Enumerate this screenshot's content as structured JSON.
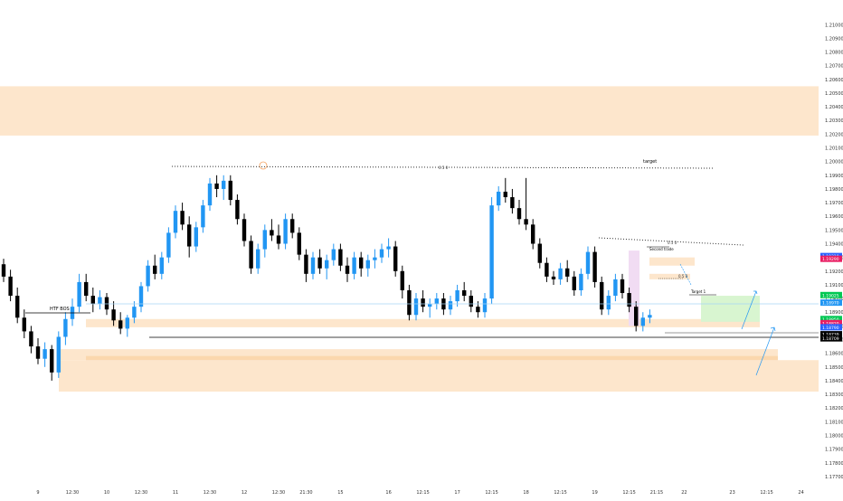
{
  "theme": {
    "background": "#ffffff",
    "up_color": "#2196f3",
    "down_color": "#000000",
    "zone_color": "#fde6cc",
    "zone_dark": "#fbd7ad",
    "target_green": "#d8f5d0",
    "purple": "#f1dcf3",
    "axis_text": "#333333"
  },
  "chart_data": {
    "type": "candlestick",
    "title": "",
    "xlabel": "",
    "ylabel": "",
    "ylim": [
      1.1764,
      1.2118
    ],
    "y_ticks": [
      "1.21000",
      "1.20900",
      "1.20800",
      "1.20700",
      "1.20600",
      "1.20500",
      "1.20400",
      "1.20300",
      "1.20200",
      "1.20100",
      "1.20000",
      "1.19900",
      "1.19800",
      "1.19700",
      "1.19600",
      "1.19500",
      "1.19400",
      "1.19300",
      "1.19200",
      "1.19100",
      "1.19000",
      "1.18900",
      "1.18800",
      "1.18700",
      "1.18600",
      "1.18500",
      "1.18400",
      "1.18300",
      "1.18200",
      "1.18100",
      "1.18000",
      "1.17900",
      "1.17800",
      "1.17700"
    ],
    "x_ticks": [
      {
        "label": "9",
        "index": 5
      },
      {
        "label": "12:30",
        "index": 10
      },
      {
        "label": "10",
        "index": 15
      },
      {
        "label": "12:30",
        "index": 20
      },
      {
        "label": "11",
        "index": 25
      },
      {
        "label": "12:30",
        "index": 30
      },
      {
        "label": "12",
        "index": 35
      },
      {
        "label": "12:30",
        "index": 40
      },
      {
        "label": "21:30",
        "index": 44
      },
      {
        "label": "15",
        "index": 49
      },
      {
        "label": "16",
        "index": 56
      },
      {
        "label": "12:15",
        "index": 61
      },
      {
        "label": "17",
        "index": 66
      },
      {
        "label": "12:15",
        "index": 71
      },
      {
        "label": "18",
        "index": 76
      },
      {
        "label": "12:15",
        "index": 81
      },
      {
        "label": "19",
        "index": 86
      },
      {
        "label": "12:15",
        "index": 91
      },
      {
        "label": "21:15",
        "index": 95
      },
      {
        "label": "22",
        "index": 99
      },
      {
        "label": "23",
        "index": 106
      },
      {
        "label": "12:15",
        "index": 111
      },
      {
        "label": "24",
        "index": 116
      }
    ],
    "candles": [
      [
        1.1925,
        1.1929,
        1.1912,
        1.1916
      ],
      [
        1.1916,
        1.1921,
        1.1898,
        1.1902
      ],
      [
        1.1902,
        1.1908,
        1.1882,
        1.1886
      ],
      [
        1.1886,
        1.1892,
        1.1871,
        1.1876
      ],
      [
        1.1876,
        1.188,
        1.186,
        1.1865
      ],
      [
        1.1865,
        1.1871,
        1.1852,
        1.1856
      ],
      [
        1.1856,
        1.1868,
        1.185,
        1.1863
      ],
      [
        1.1863,
        1.1866,
        1.184,
        1.1846
      ],
      [
        1.1846,
        1.1876,
        1.1842,
        1.1872
      ],
      [
        1.1872,
        1.189,
        1.1866,
        1.1885
      ],
      [
        1.1885,
        1.19,
        1.188,
        1.1894
      ],
      [
        1.1894,
        1.1918,
        1.189,
        1.1912
      ],
      [
        1.1912,
        1.1918,
        1.1898,
        1.1902
      ],
      [
        1.1902,
        1.1908,
        1.189,
        1.1896
      ],
      [
        1.1896,
        1.1906,
        1.1892,
        1.1901
      ],
      [
        1.1901,
        1.1904,
        1.1888,
        1.1892
      ],
      [
        1.1892,
        1.1898,
        1.188,
        1.1884
      ],
      [
        1.1884,
        1.189,
        1.1874,
        1.1878
      ],
      [
        1.1878,
        1.1888,
        1.1872,
        1.1886
      ],
      [
        1.1886,
        1.1898,
        1.1882,
        1.1894
      ],
      [
        1.1894,
        1.1912,
        1.189,
        1.1909
      ],
      [
        1.1909,
        1.1928,
        1.1905,
        1.1924
      ],
      [
        1.1924,
        1.1932,
        1.1914,
        1.1918
      ],
      [
        1.1918,
        1.1934,
        1.1914,
        1.193
      ],
      [
        1.193,
        1.1952,
        1.1926,
        1.1948
      ],
      [
        1.1948,
        1.1968,
        1.1944,
        1.1964
      ],
      [
        1.1964,
        1.197,
        1.195,
        1.1954
      ],
      [
        1.1954,
        1.196,
        1.193,
        1.1938
      ],
      [
        1.1938,
        1.1956,
        1.1934,
        1.1952
      ],
      [
        1.1952,
        1.1972,
        1.1948,
        1.1968
      ],
      [
        1.1968,
        1.1988,
        1.1964,
        1.1984
      ],
      [
        1.1984,
        1.199,
        1.1974,
        1.198
      ],
      [
        1.198,
        1.199,
        1.1972,
        1.1986
      ],
      [
        1.1986,
        1.199,
        1.1968,
        1.1972
      ],
      [
        1.1972,
        1.1976,
        1.1954,
        1.1958
      ],
      [
        1.1958,
        1.1962,
        1.1938,
        1.1942
      ],
      [
        1.1942,
        1.1946,
        1.1918,
        1.1922
      ],
      [
        1.1922,
        1.194,
        1.1918,
        1.1936
      ],
      [
        1.1936,
        1.1954,
        1.193,
        1.195
      ],
      [
        1.195,
        1.1958,
        1.1942,
        1.1946
      ],
      [
        1.1946,
        1.1954,
        1.1936,
        1.194
      ],
      [
        1.194,
        1.1962,
        1.1936,
        1.1958
      ],
      [
        1.1958,
        1.1962,
        1.1944,
        1.1948
      ],
      [
        1.1948,
        1.1952,
        1.1928,
        1.1932
      ],
      [
        1.1932,
        1.1936,
        1.1912,
        1.1918
      ],
      [
        1.1918,
        1.1934,
        1.1914,
        1.193
      ],
      [
        1.193,
        1.1936,
        1.1918,
        1.1922
      ],
      [
        1.1922,
        1.1932,
        1.1914,
        1.1928
      ],
      [
        1.1928,
        1.194,
        1.1924,
        1.1936
      ],
      [
        1.1936,
        1.194,
        1.192,
        1.1924
      ],
      [
        1.1924,
        1.193,
        1.1912,
        1.1918
      ],
      [
        1.1918,
        1.1934,
        1.1914,
        1.193
      ],
      [
        1.193,
        1.1934,
        1.1916,
        1.1922
      ],
      [
        1.1922,
        1.1932,
        1.1916,
        1.1928
      ],
      [
        1.1928,
        1.1936,
        1.1922,
        1.193
      ],
      [
        1.193,
        1.194,
        1.1926,
        1.1936
      ],
      [
        1.1936,
        1.1944,
        1.193,
        1.1938
      ],
      [
        1.1938,
        1.1942,
        1.1916,
        1.192
      ],
      [
        1.192,
        1.1924,
        1.19,
        1.1906
      ],
      [
        1.1906,
        1.191,
        1.1884,
        1.1888
      ],
      [
        1.1888,
        1.1904,
        1.1884,
        1.19
      ],
      [
        1.19,
        1.1906,
        1.189,
        1.1894
      ],
      [
        1.1894,
        1.19,
        1.1886,
        1.1896
      ],
      [
        1.1896,
        1.1904,
        1.1892,
        1.19
      ],
      [
        1.19,
        1.1904,
        1.1888,
        1.1892
      ],
      [
        1.1892,
        1.1902,
        1.1888,
        1.1898
      ],
      [
        1.1898,
        1.191,
        1.1894,
        1.1906
      ],
      [
        1.1906,
        1.1912,
        1.1898,
        1.1902
      ],
      [
        1.1902,
        1.1906,
        1.189,
        1.1894
      ],
      [
        1.1894,
        1.1898,
        1.1886,
        1.189
      ],
      [
        1.189,
        1.1904,
        1.1886,
        1.19
      ],
      [
        1.19,
        1.1974,
        1.1896,
        1.1968
      ],
      [
        1.1968,
        1.1982,
        1.1964,
        1.1978
      ],
      [
        1.1978,
        1.1988,
        1.197,
        1.1974
      ],
      [
        1.1974,
        1.198,
        1.1962,
        1.1966
      ],
      [
        1.1966,
        1.1972,
        1.1954,
        1.1958
      ],
      [
        1.1958,
        1.1988,
        1.195,
        1.1954
      ],
      [
        1.1954,
        1.1958,
        1.1936,
        1.194
      ],
      [
        1.194,
        1.1944,
        1.1922,
        1.1926
      ],
      [
        1.1926,
        1.193,
        1.1912,
        1.1916
      ],
      [
        1.1916,
        1.192,
        1.191,
        1.1914
      ],
      [
        1.1914,
        1.1926,
        1.191,
        1.1922
      ],
      [
        1.1922,
        1.1928,
        1.1912,
        1.1916
      ],
      [
        1.1916,
        1.192,
        1.1902,
        1.1906
      ],
      [
        1.1906,
        1.1922,
        1.1902,
        1.1918
      ],
      [
        1.1918,
        1.1938,
        1.1914,
        1.1934
      ],
      [
        1.1934,
        1.1938,
        1.1908,
        1.1912
      ],
      [
        1.1912,
        1.1916,
        1.1888,
        1.1892
      ],
      [
        1.1892,
        1.1906,
        1.1888,
        1.1902
      ],
      [
        1.1902,
        1.1918,
        1.1898,
        1.1914
      ],
      [
        1.1914,
        1.1918,
        1.19,
        1.1904
      ],
      [
        1.1904,
        1.1908,
        1.189,
        1.1894
      ],
      [
        1.1894,
        1.1898,
        1.1876,
        1.188
      ],
      [
        1.188,
        1.189,
        1.1876,
        1.1886
      ],
      [
        1.1886,
        1.1892,
        1.1882,
        1.1888
      ]
    ],
    "annotations": {
      "htf_bos": "HTF BOS",
      "target_top": "target",
      "dots_top": "0.5 0",
      "second_trade": "Second trade",
      "target_1": "Target 1",
      "dots_mid_1": "0.5 0",
      "dots_mid_2": "0.5 0"
    },
    "price_tags": [
      {
        "label": "1.19310",
        "color": "#2962ff",
        "y": 1.1931
      },
      {
        "label": "1.19290",
        "color": "#e91e63",
        "y": 1.1929
      },
      {
        "label": "1.19025",
        "color": "#00c853",
        "y": 1.19025
      },
      {
        "label": "1.18970",
        "color": "#2196f3",
        "y": 1.1897
      },
      {
        "label": "1.18850",
        "color": "#00c853",
        "y": 1.1885
      },
      {
        "label": "1.18820",
        "color": "#e91e63",
        "y": 1.1882
      },
      {
        "label": "1.18790",
        "color": "#2962ff",
        "y": 1.1879
      },
      {
        "label": "1.18739",
        "color": "#000000",
        "y": 1.18739
      },
      {
        "label": "1.18709",
        "color": "#000000",
        "y": 1.18709
      }
    ]
  }
}
